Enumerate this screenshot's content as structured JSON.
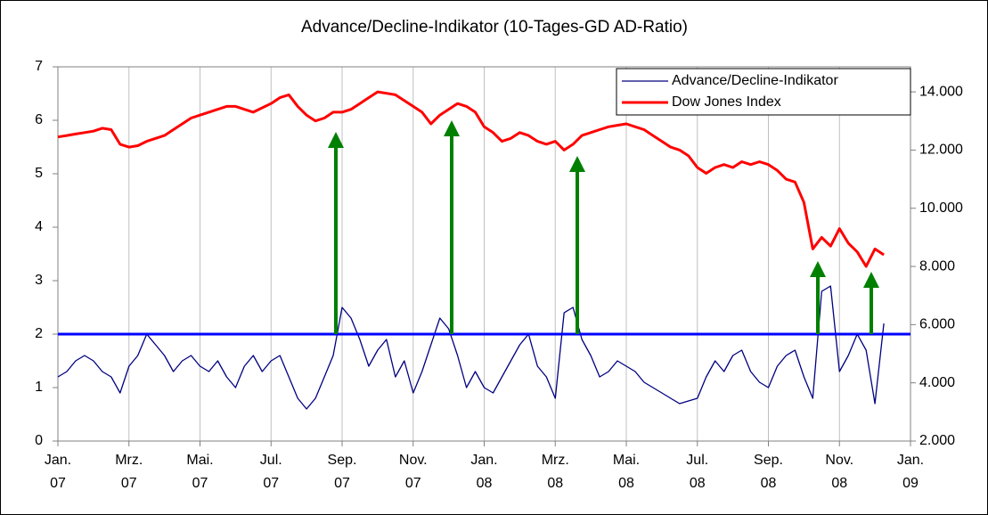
{
  "chart_data": {
    "type": "line",
    "title": "Advance/Decline-Indikator (10-Tages-GD AD-Ratio)",
    "categories": [
      "Jan.\n07",
      null,
      null,
      null,
      null,
      null,
      null,
      null,
      "Mrz.\n07",
      null,
      null,
      null,
      null,
      null,
      null,
      null,
      "Mai.\n07",
      null,
      null,
      null,
      null,
      null,
      null,
      null,
      "Jul.\n07",
      null,
      null,
      null,
      null,
      null,
      null,
      null,
      "Sep.\n07",
      null,
      null,
      null,
      null,
      null,
      null,
      null,
      "Nov.\n07",
      null,
      null,
      null,
      null,
      null,
      null,
      null,
      "Jan.\n08",
      null,
      null,
      null,
      null,
      null,
      null,
      null,
      "Mrz.\n08",
      null,
      null,
      null,
      null,
      null,
      null,
      null,
      "Mai.\n08",
      null,
      null,
      null,
      null,
      null,
      null,
      null,
      "Jul.\n08",
      null,
      null,
      null,
      null,
      null,
      null,
      null,
      "Sep.\n08",
      null,
      null,
      null,
      null,
      null,
      null,
      null,
      "Nov.\n08",
      null,
      null,
      null,
      null,
      null,
      null,
      null,
      "Jan.\n09"
    ],
    "series": [
      {
        "name": "Advance/Decline-Indikator",
        "color": "#000080",
        "axis": "y",
        "values": [
          1.2,
          1.3,
          1.5,
          1.6,
          1.5,
          1.3,
          1.2,
          0.9,
          1.4,
          1.6,
          2.0,
          1.8,
          1.6,
          1.3,
          1.5,
          1.6,
          1.4,
          1.3,
          1.5,
          1.2,
          1.0,
          1.4,
          1.6,
          1.3,
          1.5,
          1.6,
          1.2,
          0.8,
          0.6,
          0.8,
          1.2,
          1.6,
          2.5,
          2.3,
          1.9,
          1.4,
          1.7,
          1.9,
          1.2,
          1.5,
          0.9,
          1.3,
          1.8,
          2.3,
          2.1,
          1.6,
          1.0,
          1.3,
          1.0,
          0.9,
          1.2,
          1.5,
          1.8,
          2.0,
          1.4,
          1.2,
          0.8,
          2.4,
          2.5,
          1.9,
          1.6,
          1.2,
          1.3,
          1.5,
          1.4,
          1.3,
          1.1,
          1.0,
          0.9,
          0.8,
          0.7,
          0.75,
          0.8,
          1.2,
          1.5,
          1.3,
          1.6,
          1.7,
          1.3,
          1.1,
          1.0,
          1.4,
          1.6,
          1.7,
          1.2,
          0.8,
          2.8,
          2.9,
          1.3,
          1.6,
          2.0,
          1.7,
          0.7,
          2.2,
          null,
          null,
          null
        ]
      },
      {
        "name": "Dow Jones Index",
        "color": "#ff0000",
        "axis": "y2",
        "values": [
          12450,
          12500,
          12550,
          12600,
          12650,
          12750,
          12700,
          12200,
          12100,
          12150,
          12300,
          12400,
          12500,
          12700,
          12900,
          13100,
          13200,
          13300,
          13400,
          13500,
          13500,
          13400,
          13300,
          13450,
          13600,
          13800,
          13900,
          13500,
          13200,
          13000,
          13100,
          13300,
          13300,
          13400,
          13600,
          13800,
          14000,
          13950,
          13900,
          13700,
          13500,
          13300,
          12900,
          13200,
          13400,
          13600,
          13500,
          13300,
          12800,
          12600,
          12300,
          12400,
          12600,
          12500,
          12300,
          12200,
          12300,
          12000,
          12200,
          12500,
          12600,
          12700,
          12800,
          12850,
          12900,
          12800,
          12700,
          12500,
          12300,
          12100,
          12000,
          11800,
          11400,
          11200,
          11400,
          11500,
          11400,
          11600,
          11500,
          11600,
          11500,
          11300,
          11000,
          10900,
          10200,
          8600,
          9000,
          8700,
          9300,
          8800,
          8500,
          8000,
          8600,
          8400,
          null,
          null,
          null
        ]
      }
    ],
    "ylim": [
      0,
      7
    ],
    "yticks": [
      0,
      1,
      2,
      3,
      4,
      5,
      6,
      7
    ],
    "y2lim": [
      2000,
      14860
    ],
    "y2ticks": [
      {
        "value": 2000,
        "label": "2.000"
      },
      {
        "value": 4000,
        "label": "4.000"
      },
      {
        "value": 6000,
        "label": "6.000"
      },
      {
        "value": 8000,
        "label": "8.000"
      },
      {
        "value": 10000,
        "label": "10.000"
      },
      {
        "value": 12000,
        "label": "12.000"
      },
      {
        "value": 14000,
        "label": "14.000"
      }
    ],
    "reference_line": {
      "value": 2,
      "color": "#0000ff"
    },
    "grid": true,
    "legend": "upper right"
  }
}
